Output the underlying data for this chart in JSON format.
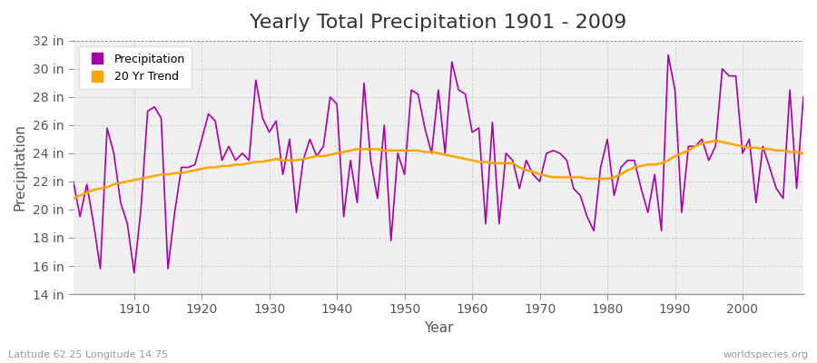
{
  "title": "Yearly Total Precipitation 1901 - 2009",
  "xlabel": "Year",
  "ylabel": "Precipitation",
  "bottom_left_label": "Latitude 62.25 Longitude 14.75",
  "bottom_right_label": "worldspecies.org",
  "precip_color": "#aa00aa",
  "trend_color": "#ffa500",
  "fig_bg_color": "#ffffff",
  "plot_bg_color": "#f0f0f0",
  "ylim": [
    14,
    32
  ],
  "yticks": [
    14,
    16,
    18,
    20,
    22,
    24,
    26,
    28,
    30,
    32
  ],
  "ytick_labels": [
    "14 in",
    "16 in",
    "18 in",
    "20 in",
    "22 in",
    "24 in",
    "26 in",
    "28 in",
    "30 in",
    "32 in"
  ],
  "xlim": [
    1901,
    2009
  ],
  "xticks": [
    1910,
    1920,
    1930,
    1940,
    1950,
    1960,
    1970,
    1980,
    1990,
    2000
  ],
  "years": [
    1901,
    1902,
    1903,
    1904,
    1905,
    1906,
    1907,
    1908,
    1909,
    1910,
    1911,
    1912,
    1913,
    1914,
    1915,
    1916,
    1917,
    1918,
    1919,
    1920,
    1921,
    1922,
    1923,
    1924,
    1925,
    1926,
    1927,
    1928,
    1929,
    1930,
    1931,
    1932,
    1933,
    1934,
    1935,
    1936,
    1937,
    1938,
    1939,
    1940,
    1941,
    1942,
    1943,
    1944,
    1945,
    1946,
    1947,
    1948,
    1949,
    1950,
    1951,
    1952,
    1953,
    1954,
    1955,
    1956,
    1957,
    1958,
    1959,
    1960,
    1961,
    1962,
    1963,
    1964,
    1965,
    1966,
    1967,
    1968,
    1969,
    1970,
    1971,
    1972,
    1973,
    1974,
    1975,
    1976,
    1977,
    1978,
    1979,
    1980,
    1981,
    1982,
    1983,
    1984,
    1985,
    1986,
    1987,
    1988,
    1989,
    1990,
    1991,
    1992,
    1993,
    1994,
    1995,
    1996,
    1997,
    1998,
    1999,
    2000,
    2001,
    2002,
    2003,
    2004,
    2005,
    2006,
    2007,
    2008,
    2009
  ],
  "precip": [
    22.0,
    19.5,
    21.8,
    19.0,
    15.8,
    25.8,
    24.0,
    20.5,
    19.0,
    15.5,
    20.0,
    27.0,
    27.3,
    26.5,
    15.8,
    19.8,
    23.0,
    23.0,
    23.2,
    25.0,
    26.8,
    26.3,
    23.5,
    24.5,
    23.5,
    24.0,
    23.5,
    29.2,
    26.5,
    25.5,
    26.3,
    22.5,
    25.0,
    19.8,
    23.5,
    25.0,
    23.8,
    24.5,
    28.0,
    27.5,
    19.5,
    23.5,
    20.5,
    29.0,
    23.5,
    20.8,
    26.0,
    17.8,
    24.0,
    22.5,
    28.5,
    28.2,
    25.8,
    24.0,
    28.5,
    24.0,
    30.5,
    28.5,
    28.2,
    25.5,
    25.8,
    19.0,
    26.2,
    19.0,
    24.0,
    23.5,
    21.5,
    23.5,
    22.5,
    22.0,
    24.0,
    24.2,
    24.0,
    23.5,
    21.5,
    21.0,
    19.5,
    18.5,
    23.0,
    25.0,
    21.0,
    23.0,
    23.5,
    23.5,
    21.5,
    19.8,
    22.5,
    18.5,
    31.0,
    28.5,
    19.8,
    24.5,
    24.5,
    25.0,
    23.5,
    24.5,
    30.0,
    29.5,
    29.5,
    24.0,
    25.0,
    20.5,
    24.5,
    23.0,
    21.5,
    20.8,
    28.5,
    21.5,
    28.0
  ],
  "trend": [
    20.8,
    21.0,
    21.2,
    21.4,
    21.5,
    21.6,
    21.8,
    21.9,
    22.0,
    22.1,
    22.2,
    22.3,
    22.4,
    22.5,
    22.5,
    22.6,
    22.6,
    22.7,
    22.8,
    22.9,
    23.0,
    23.0,
    23.1,
    23.1,
    23.2,
    23.2,
    23.3,
    23.4,
    23.4,
    23.5,
    23.6,
    23.5,
    23.5,
    23.5,
    23.6,
    23.7,
    23.8,
    23.8,
    23.9,
    24.0,
    24.1,
    24.2,
    24.3,
    24.3,
    24.3,
    24.3,
    24.2,
    24.2,
    24.2,
    24.2,
    24.2,
    24.2,
    24.1,
    24.1,
    24.0,
    23.9,
    23.8,
    23.7,
    23.6,
    23.5,
    23.4,
    23.4,
    23.3,
    23.3,
    23.3,
    23.3,
    23.0,
    22.8,
    22.7,
    22.5,
    22.4,
    22.3,
    22.3,
    22.3,
    22.3,
    22.3,
    22.2,
    22.2,
    22.2,
    22.2,
    22.3,
    22.5,
    22.8,
    23.0,
    23.1,
    23.2,
    23.2,
    23.3,
    23.5,
    23.8,
    24.0,
    24.2,
    24.5,
    24.7,
    24.8,
    24.9,
    24.8,
    24.7,
    24.6,
    24.5,
    24.4,
    24.4,
    24.3,
    24.3,
    24.2,
    24.2,
    24.1,
    24.1,
    24.0
  ],
  "legend_precip": "Precipitation",
  "legend_trend": "20 Yr Trend",
  "title_fontsize": 16,
  "axis_label_fontsize": 11,
  "tick_fontsize": 10,
  "dotted_line_y": 32
}
